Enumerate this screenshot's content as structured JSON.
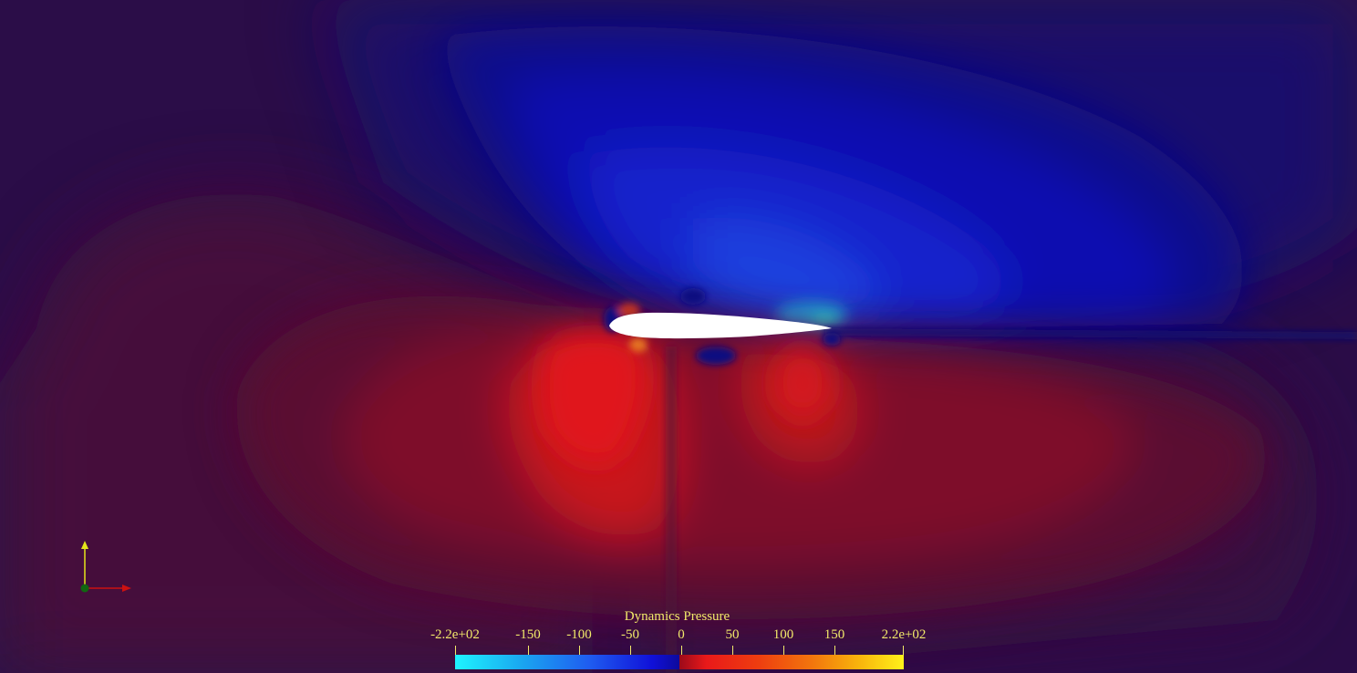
{
  "view": {
    "field": "Dynamics Pressure",
    "background_color": "#2a0d47"
  },
  "colorbar": {
    "title": "Dynamics Pressure",
    "ticks": [
      {
        "label": "-2.2e+02",
        "value": -220
      },
      {
        "label": "-150",
        "value": -150
      },
      {
        "label": "-100",
        "value": -100
      },
      {
        "label": "-50",
        "value": -50
      },
      {
        "label": "0",
        "value": 0
      },
      {
        "label": "50",
        "value": 50
      },
      {
        "label": "100",
        "value": 100
      },
      {
        "label": "150",
        "value": 150
      },
      {
        "label": "2.2e+02",
        "value": 220
      }
    ],
    "range": [
      -220,
      220
    ],
    "colors": {
      "min": "#1ef4ff",
      "mid_low": "#0d0a9c",
      "mid_high": "#9c0a1a",
      "max": "#fff21a"
    },
    "text_color": "#f2e96a"
  },
  "axes": {
    "x_color": "#cc1111",
    "y_color": "#e5e51a",
    "z_color": "#116611"
  },
  "icons": {
    "orientation": "axes-triad-icon"
  }
}
